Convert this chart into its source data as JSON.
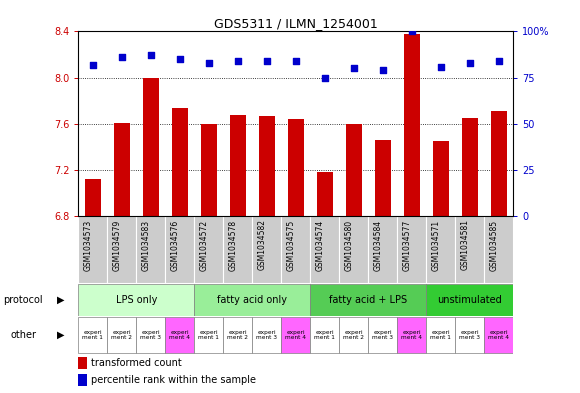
{
  "title": "GDS5311 / ILMN_1254001",
  "samples": [
    "GSM1034573",
    "GSM1034579",
    "GSM1034583",
    "GSM1034576",
    "GSM1034572",
    "GSM1034578",
    "GSM1034582",
    "GSM1034575",
    "GSM1034574",
    "GSM1034580",
    "GSM1034584",
    "GSM1034577",
    "GSM1034571",
    "GSM1034581",
    "GSM1034585"
  ],
  "bar_values": [
    7.12,
    7.61,
    8.0,
    7.74,
    7.6,
    7.68,
    7.67,
    7.64,
    7.18,
    7.6,
    7.46,
    8.38,
    7.45,
    7.65,
    7.71
  ],
  "dot_values": [
    82,
    86,
    87,
    85,
    83,
    84,
    84,
    84,
    75,
    80,
    79,
    100,
    81,
    83,
    84
  ],
  "ylim_left": [
    6.8,
    8.4
  ],
  "ylim_right": [
    0,
    100
  ],
  "yticks_left": [
    6.8,
    7.2,
    7.6,
    8.0,
    8.4
  ],
  "yticks_right": [
    0,
    25,
    50,
    75,
    100
  ],
  "ytick_labels_left": [
    "6.8",
    "7.2",
    "7.6",
    "8.0",
    "8.4"
  ],
  "ytick_labels_right": [
    "0",
    "25",
    "50",
    "75",
    "100%"
  ],
  "bar_color": "#CC0000",
  "dot_color": "#0000CC",
  "grid_color": "black",
  "bg_color": "#FFFFFF",
  "plot_bg": "#FFFFFF",
  "protocol_groups": [
    {
      "label": "LPS only",
      "start": 0,
      "end": 4,
      "color": "#CCFFCC"
    },
    {
      "label": "fatty acid only",
      "start": 4,
      "end": 8,
      "color": "#99EE99"
    },
    {
      "label": "fatty acid + LPS",
      "start": 8,
      "end": 12,
      "color": "#55CC55"
    },
    {
      "label": "unstimulated",
      "start": 12,
      "end": 15,
      "color": "#33CC33"
    }
  ],
  "experiment_colors": [
    "#FFFFFF",
    "#FFFFFF",
    "#FFFFFF",
    "#FF66FF",
    "#FFFFFF",
    "#FFFFFF",
    "#FFFFFF",
    "#FF66FF",
    "#FFFFFF",
    "#FFFFFF",
    "#FFFFFF",
    "#FF66FF",
    "#FFFFFF",
    "#FFFFFF",
    "#FF66FF"
  ],
  "experiment_labels": [
    "experi\nment 1",
    "experi\nment 2",
    "experi\nment 3",
    "experi\nment 4",
    "experi\nment 1",
    "experi\nment 2",
    "experi\nment 3",
    "experi\nment 4",
    "experi\nment 1",
    "experi\nment 2",
    "experi\nment 3",
    "experi\nment 4",
    "experi\nment 1",
    "experi\nment 3",
    "experi\nment 4"
  ],
  "sample_bg_color": "#CCCCCC",
  "xticklabel_fontsize": 5.5,
  "bar_width": 0.55
}
